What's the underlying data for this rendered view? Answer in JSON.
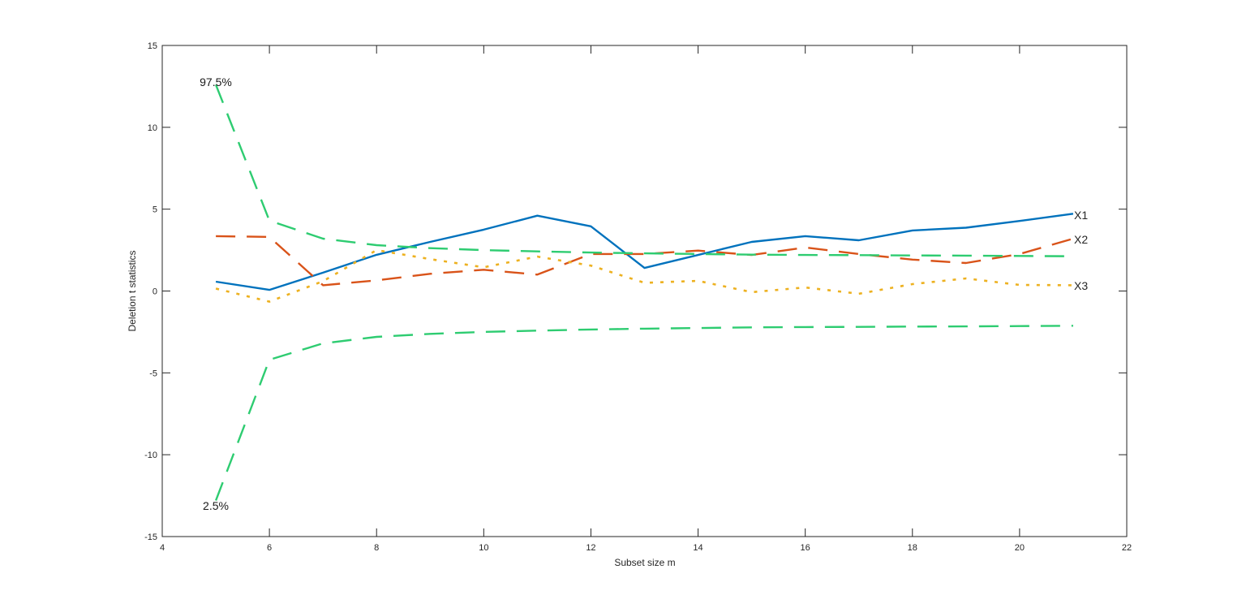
{
  "chart_data": {
    "type": "line",
    "title": "",
    "xlabel": "Subset size m",
    "ylabel": "Deletion t statistics",
    "xlim": [
      4,
      22
    ],
    "ylim": [
      -15,
      15
    ],
    "xticks": [
      4,
      6,
      8,
      10,
      12,
      14,
      16,
      18,
      20,
      22
    ],
    "yticks": [
      -15,
      -10,
      -5,
      0,
      5,
      10,
      15
    ],
    "grid": false,
    "legend": "none (line-end labels)",
    "x": [
      5,
      6,
      7,
      8,
      9,
      10,
      11,
      12,
      13,
      14,
      15,
      16,
      17,
      18,
      19,
      20,
      21
    ],
    "series": [
      {
        "name": "X1",
        "style": "solid",
        "color": "#0072BD",
        "values": [
          0.57,
          0.07,
          1.12,
          2.21,
          3.0,
          3.75,
          4.6,
          3.95,
          1.41,
          2.2,
          3.0,
          3.35,
          3.1,
          3.7,
          3.87,
          4.28,
          4.72
        ]
      },
      {
        "name": "X2",
        "style": "dashed",
        "color": "#D95319",
        "values": [
          3.35,
          3.3,
          0.35,
          0.65,
          1.05,
          1.3,
          1.0,
          2.26,
          2.26,
          2.47,
          2.2,
          2.66,
          2.26,
          1.92,
          1.71,
          2.26,
          3.2
        ]
      },
      {
        "name": "X3",
        "style": "dotted",
        "color": "#EDB120",
        "values": [
          0.15,
          -0.65,
          0.6,
          2.5,
          1.95,
          1.45,
          2.1,
          1.55,
          0.5,
          0.62,
          -0.07,
          0.22,
          -0.17,
          0.42,
          0.77,
          0.37,
          0.35
        ]
      },
      {
        "name": "97.5%",
        "style": "long-dashed",
        "color": "#2ECC71",
        "values": [
          12.6,
          4.3,
          3.2,
          2.8,
          2.62,
          2.5,
          2.42,
          2.35,
          2.3,
          2.26,
          2.22,
          2.2,
          2.19,
          2.17,
          2.16,
          2.14,
          2.12
        ]
      },
      {
        "name": "2.5%",
        "style": "long-dashed",
        "color": "#2ECC71",
        "values": [
          -12.8,
          -4.2,
          -3.2,
          -2.8,
          -2.62,
          -2.5,
          -2.42,
          -2.35,
          -2.3,
          -2.26,
          -2.22,
          -2.2,
          -2.19,
          -2.17,
          -2.16,
          -2.14,
          -2.12
        ]
      }
    ],
    "annotations": [
      {
        "text": "97.5%",
        "x": 5,
        "y": 12.6
      },
      {
        "text": "2.5%",
        "x": 5,
        "y": -12.8
      },
      {
        "text": "X1",
        "x": 21,
        "y": 4.72
      },
      {
        "text": "X2",
        "x": 21,
        "y": 3.2
      },
      {
        "text": "X3",
        "x": 21,
        "y": 0.35
      }
    ]
  },
  "labels": {
    "xlabel": "Subset size m",
    "ylabel": "Deletion t statistics",
    "upper_band": "97.5%",
    "lower_band": "2.5%",
    "x1": "X1",
    "x2": "X2",
    "x3": "X3"
  }
}
